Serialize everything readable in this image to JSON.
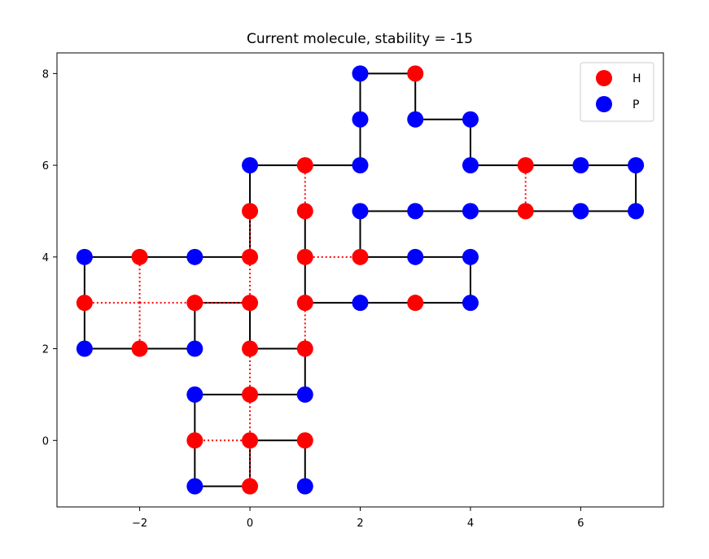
{
  "chart_data": {
    "type": "scatter",
    "title": "Current molecule, stability = -15",
    "xlabel": "",
    "ylabel": "",
    "xlim": [
      -3.5,
      7.5
    ],
    "ylim": [
      -1.45,
      8.45
    ],
    "xticks": [
      -2,
      0,
      2,
      4,
      6
    ],
    "yticks": [
      0,
      2,
      4,
      6,
      8
    ],
    "grid": false,
    "legend_position": "top-right",
    "colors": {
      "H": "#ff0000",
      "P": "#0000ff",
      "bond": "#000000",
      "contact": "#ff0000",
      "axis": "#000000"
    },
    "series": [
      {
        "name": "H",
        "color": "#ff0000"
      },
      {
        "name": "P",
        "color": "#0000ff"
      }
    ],
    "chain": [
      {
        "x": 1,
        "y": -1,
        "type": "P"
      },
      {
        "x": 1,
        "y": 0,
        "type": "H"
      },
      {
        "x": 0,
        "y": 0,
        "type": "H"
      },
      {
        "x": 0,
        "y": -1,
        "type": "H"
      },
      {
        "x": -1,
        "y": -1,
        "type": "P"
      },
      {
        "x": -1,
        "y": 0,
        "type": "H"
      },
      {
        "x": -1,
        "y": 1,
        "type": "P"
      },
      {
        "x": 0,
        "y": 1,
        "type": "H"
      },
      {
        "x": 1,
        "y": 1,
        "type": "P"
      },
      {
        "x": 1,
        "y": 2,
        "type": "H"
      },
      {
        "x": 0,
        "y": 2,
        "type": "H"
      },
      {
        "x": 0,
        "y": 3,
        "type": "H"
      },
      {
        "x": -1,
        "y": 3,
        "type": "H"
      },
      {
        "x": -1,
        "y": 2,
        "type": "P"
      },
      {
        "x": -2,
        "y": 2,
        "type": "H"
      },
      {
        "x": -3,
        "y": 2,
        "type": "P"
      },
      {
        "x": -3,
        "y": 3,
        "type": "H"
      },
      {
        "x": -3,
        "y": 4,
        "type": "P"
      },
      {
        "x": -2,
        "y": 4,
        "type": "H"
      },
      {
        "x": -1,
        "y": 4,
        "type": "P"
      },
      {
        "x": 0,
        "y": 4,
        "type": "H"
      },
      {
        "x": 0,
        "y": 5,
        "type": "H"
      },
      {
        "x": 0,
        "y": 6,
        "type": "P"
      },
      {
        "x": 1,
        "y": 6,
        "type": "H"
      },
      {
        "x": 2,
        "y": 6,
        "type": "P"
      },
      {
        "x": 2,
        "y": 7,
        "type": "P"
      },
      {
        "x": 2,
        "y": 8,
        "type": "P"
      },
      {
        "x": 3,
        "y": 8,
        "type": "H"
      },
      {
        "x": 3,
        "y": 7,
        "type": "P"
      },
      {
        "x": 4,
        "y": 7,
        "type": "P"
      },
      {
        "x": 4,
        "y": 6,
        "type": "P"
      },
      {
        "x": 5,
        "y": 6,
        "type": "H"
      },
      {
        "x": 6,
        "y": 6,
        "type": "P"
      },
      {
        "x": 7,
        "y": 6,
        "type": "P"
      },
      {
        "x": 7,
        "y": 5,
        "type": "P"
      },
      {
        "x": 6,
        "y": 5,
        "type": "P"
      },
      {
        "x": 5,
        "y": 5,
        "type": "H"
      },
      {
        "x": 4,
        "y": 5,
        "type": "P"
      },
      {
        "x": 3,
        "y": 5,
        "type": "P"
      },
      {
        "x": 2,
        "y": 5,
        "type": "P"
      },
      {
        "x": 2,
        "y": 4,
        "type": "H"
      },
      {
        "x": 3,
        "y": 4,
        "type": "P"
      },
      {
        "x": 4,
        "y": 4,
        "type": "P"
      },
      {
        "x": 4,
        "y": 3,
        "type": "P"
      },
      {
        "x": 3,
        "y": 3,
        "type": "H"
      },
      {
        "x": 2,
        "y": 3,
        "type": "P"
      },
      {
        "x": 1,
        "y": 3,
        "type": "H"
      },
      {
        "x": 1,
        "y": 4,
        "type": "H"
      },
      {
        "x": 1,
        "y": 5,
        "type": "H"
      }
    ],
    "contacts": [
      [
        [
          0,
          0
        ],
        [
          -1,
          0
        ]
      ],
      [
        [
          0,
          -1
        ],
        [
          0,
          0
        ]
      ],
      [
        [
          0,
          0
        ],
        [
          0,
          1
        ]
      ],
      [
        [
          0,
          1
        ],
        [
          0,
          2
        ]
      ],
      [
        [
          1,
          2
        ],
        [
          1,
          3
        ]
      ],
      [
        [
          0,
          3
        ],
        [
          0,
          4
        ]
      ],
      [
        [
          -1,
          3
        ],
        [
          0,
          3
        ]
      ],
      [
        [
          -2,
          3
        ],
        [
          -1,
          3
        ]
      ],
      [
        [
          -3,
          3
        ],
        [
          -2,
          3
        ]
      ],
      [
        [
          -2,
          2
        ],
        [
          -2,
          3
        ]
      ],
      [
        [
          -2,
          3
        ],
        [
          -2,
          4
        ]
      ],
      [
        [
          0,
          4
        ],
        [
          0,
          5
        ]
      ],
      [
        [
          1,
          5
        ],
        [
          1,
          6
        ]
      ],
      [
        [
          5,
          5
        ],
        [
          5,
          6
        ]
      ],
      [
        [
          1,
          4
        ],
        [
          2,
          4
        ]
      ]
    ]
  }
}
